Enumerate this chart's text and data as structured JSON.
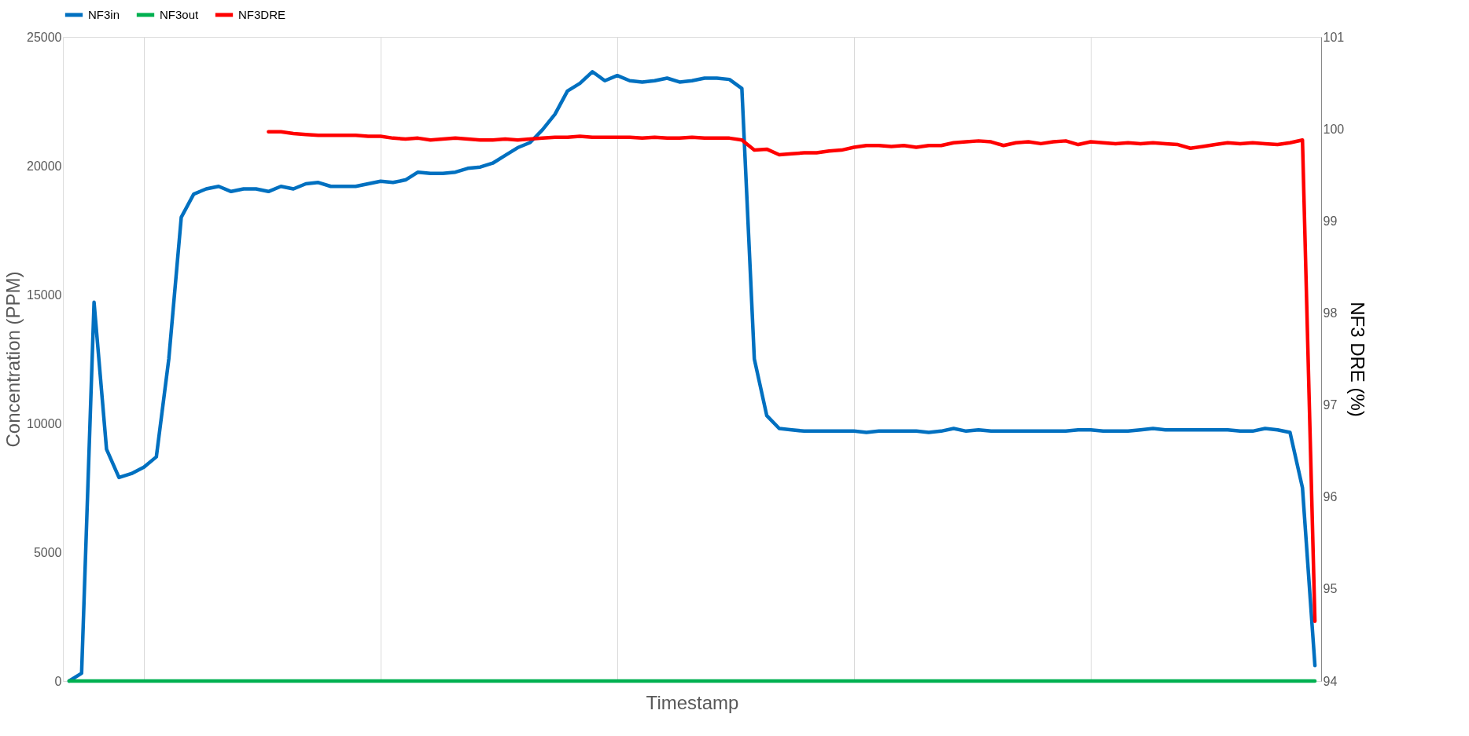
{
  "chart_data": {
    "type": "line",
    "xlabel": "Timestamp",
    "ylabel": "Concentration (PPM)",
    "y2label": "NF3 DRE (%)",
    "categories": [
      null,
      null,
      null,
      null,
      null,
      null,
      null,
      null,
      null,
      null,
      null,
      null,
      null,
      null,
      null,
      null,
      null,
      null,
      null,
      null,
      null,
      null,
      null,
      null,
      null,
      null,
      null,
      null,
      null,
      null,
      null,
      null,
      null,
      null,
      null,
      null,
      null,
      null,
      null,
      null,
      null,
      null,
      null,
      null,
      null,
      null,
      null,
      null,
      null,
      null,
      null,
      null,
      null,
      null,
      null,
      null,
      null,
      null,
      null,
      null,
      null,
      null,
      null,
      null,
      null,
      null,
      null,
      null,
      null,
      null,
      null,
      null,
      null,
      null,
      null,
      null,
      null,
      null,
      null,
      null,
      null,
      null,
      null,
      null,
      null,
      null,
      null,
      null,
      null,
      null,
      null,
      null,
      null,
      null,
      null,
      null,
      null,
      null,
      null,
      null,
      null
    ],
    "ylim": [
      0,
      25000
    ],
    "yticks": [
      0,
      5000,
      10000,
      15000,
      20000,
      25000
    ],
    "y2lim": [
      94,
      101
    ],
    "y2ticks": [
      94,
      95,
      96,
      97,
      98,
      99,
      100,
      101
    ],
    "grid": "x",
    "legend": "top",
    "series": [
      {
        "name": "NF3in",
        "color": "#0070c0",
        "values": [
          0,
          300,
          14700,
          9000,
          7900,
          8050,
          8300,
          8700,
          12500,
          18000,
          18900,
          19100,
          19200,
          19000,
          19100,
          19100,
          19000,
          19200,
          19100,
          19300,
          19350,
          19200,
          19200,
          19200,
          19300,
          19400,
          19350,
          19450,
          19750,
          19700,
          19700,
          19750,
          19900,
          19950,
          20100,
          20400,
          20700,
          20900,
          21400,
          22000,
          22900,
          23200,
          23650,
          23300,
          23500,
          23300,
          23250,
          23300,
          23400,
          23250,
          23300,
          23400,
          23400,
          23350,
          23000,
          12500,
          10300,
          9800,
          9750,
          9700,
          9700,
          9700,
          9700,
          9700,
          9650,
          9700,
          9700,
          9700,
          9700,
          9650,
          9700,
          9800,
          9700,
          9750,
          9700,
          9700,
          9700,
          9700,
          9700,
          9700,
          9700,
          9750,
          9750,
          9700,
          9700,
          9700,
          9750,
          9800,
          9750,
          9750,
          9750,
          9750,
          9750,
          9750,
          9700,
          9700,
          9800,
          9750,
          9650,
          7500,
          600
        ]
      },
      {
        "name": "NF3out",
        "color": "#00b050",
        "values": [
          0,
          0,
          0,
          0,
          0,
          0,
          0,
          0,
          0,
          0,
          0,
          0,
          0,
          0,
          0,
          0,
          0,
          0,
          0,
          0,
          0,
          0,
          0,
          0,
          0,
          0,
          0,
          0,
          0,
          0,
          0,
          0,
          0,
          0,
          0,
          0,
          0,
          0,
          0,
          0,
          0,
          0,
          0,
          0,
          0,
          0,
          0,
          0,
          0,
          0,
          0,
          0,
          0,
          0,
          0,
          0,
          0,
          0,
          0,
          0,
          0,
          0,
          0,
          0,
          0,
          0,
          0,
          0,
          0,
          0,
          0,
          0,
          0,
          0,
          0,
          0,
          0,
          0,
          0,
          0,
          0,
          0,
          0,
          0,
          0,
          0,
          0,
          0,
          0,
          0,
          0,
          0,
          0,
          0,
          0,
          0,
          0,
          0,
          0,
          0,
          0
        ]
      },
      {
        "name": "NF3DRE",
        "color": "#ff0000",
        "axis": "y2",
        "values": [
          null,
          null,
          null,
          null,
          null,
          null,
          null,
          null,
          null,
          null,
          null,
          null,
          null,
          null,
          null,
          null,
          99.97,
          99.97,
          99.95,
          99.94,
          99.93,
          99.93,
          99.93,
          99.93,
          99.92,
          99.92,
          99.9,
          99.89,
          99.9,
          99.88,
          99.89,
          99.9,
          99.89,
          99.88,
          99.88,
          99.89,
          99.88,
          99.89,
          99.9,
          99.91,
          99.91,
          99.92,
          99.91,
          99.91,
          99.91,
          99.91,
          99.9,
          99.91,
          99.9,
          99.9,
          99.91,
          99.9,
          99.9,
          99.9,
          99.88,
          99.77,
          99.78,
          99.72,
          99.73,
          99.74,
          99.74,
          99.76,
          99.77,
          99.8,
          99.82,
          99.82,
          99.81,
          99.82,
          99.8,
          99.82,
          99.82,
          99.85,
          99.86,
          99.87,
          99.86,
          99.82,
          99.85,
          99.86,
          99.84,
          99.86,
          99.87,
          99.83,
          99.86,
          99.85,
          99.84,
          99.85,
          99.84,
          99.85,
          99.84,
          99.83,
          99.79,
          99.81,
          99.83,
          99.85,
          99.84,
          99.85,
          99.84,
          99.83,
          99.85,
          99.88,
          94.65
        ]
      }
    ]
  }
}
